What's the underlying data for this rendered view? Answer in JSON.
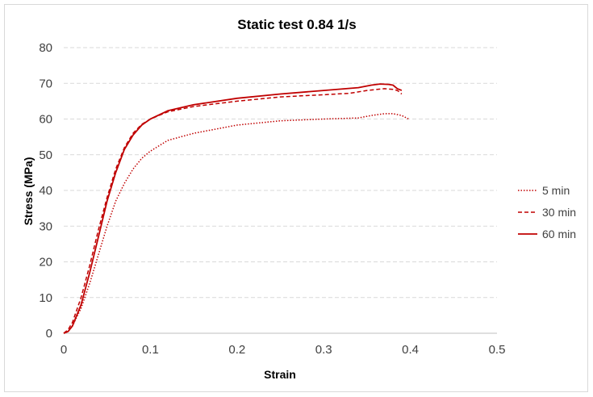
{
  "chart_data": {
    "type": "line",
    "title": "Static test 0.84 1/s",
    "xlabel": "Strain",
    "ylabel": "Stress (MPa)",
    "xlim": [
      0,
      0.5
    ],
    "ylim": [
      0,
      80
    ],
    "x_ticks": [
      "0",
      "0.1",
      "0.2",
      "0.3",
      "0.4",
      "0.5"
    ],
    "y_ticks": [
      "0",
      "10",
      "20",
      "30",
      "40",
      "50",
      "60",
      "70",
      "80"
    ],
    "grid": "horizontal dashed",
    "legend_position": "right",
    "series": [
      {
        "name": "5 min",
        "color": "#c00000",
        "style": "dotted",
        "points": [
          [
            0,
            0
          ],
          [
            0.005,
            0.5
          ],
          [
            0.01,
            2
          ],
          [
            0.02,
            7
          ],
          [
            0.03,
            14
          ],
          [
            0.04,
            22
          ],
          [
            0.05,
            30
          ],
          [
            0.06,
            37
          ],
          [
            0.07,
            42
          ],
          [
            0.08,
            46
          ],
          [
            0.09,
            49
          ],
          [
            0.1,
            51
          ],
          [
            0.12,
            54
          ],
          [
            0.15,
            56
          ],
          [
            0.2,
            58.3
          ],
          [
            0.25,
            59.5
          ],
          [
            0.3,
            60
          ],
          [
            0.34,
            60.3
          ],
          [
            0.355,
            61
          ],
          [
            0.37,
            61.5
          ],
          [
            0.38,
            61.5
          ],
          [
            0.39,
            61
          ],
          [
            0.398,
            60
          ]
        ]
      },
      {
        "name": "30 min",
        "color": "#c00000",
        "style": "dashed",
        "points": [
          [
            0,
            0
          ],
          [
            0.005,
            1
          ],
          [
            0.01,
            3
          ],
          [
            0.02,
            10
          ],
          [
            0.03,
            19
          ],
          [
            0.04,
            29
          ],
          [
            0.05,
            38
          ],
          [
            0.06,
            46
          ],
          [
            0.07,
            52
          ],
          [
            0.08,
            56
          ],
          [
            0.09,
            58.5
          ],
          [
            0.1,
            60
          ],
          [
            0.12,
            62
          ],
          [
            0.15,
            63.5
          ],
          [
            0.2,
            65
          ],
          [
            0.25,
            66.2
          ],
          [
            0.3,
            66.8
          ],
          [
            0.33,
            67.2
          ],
          [
            0.35,
            68
          ],
          [
            0.37,
            68.5
          ],
          [
            0.38,
            68.3
          ],
          [
            0.385,
            68
          ],
          [
            0.39,
            67
          ]
        ]
      },
      {
        "name": "60 min",
        "color": "#c00000",
        "style": "solid",
        "points": [
          [
            0,
            0
          ],
          [
            0.005,
            0.5
          ],
          [
            0.01,
            2
          ],
          [
            0.02,
            8
          ],
          [
            0.03,
            17
          ],
          [
            0.04,
            27
          ],
          [
            0.05,
            37
          ],
          [
            0.06,
            45
          ],
          [
            0.07,
            51.5
          ],
          [
            0.08,
            55.5
          ],
          [
            0.09,
            58.3
          ],
          [
            0.1,
            60
          ],
          [
            0.12,
            62.3
          ],
          [
            0.15,
            64
          ],
          [
            0.2,
            65.8
          ],
          [
            0.25,
            67
          ],
          [
            0.3,
            68
          ],
          [
            0.34,
            68.8
          ],
          [
            0.355,
            69.5
          ],
          [
            0.365,
            69.8
          ],
          [
            0.375,
            69.7
          ],
          [
            0.38,
            69.5
          ],
          [
            0.385,
            68.5
          ],
          [
            0.39,
            68
          ]
        ]
      }
    ]
  }
}
